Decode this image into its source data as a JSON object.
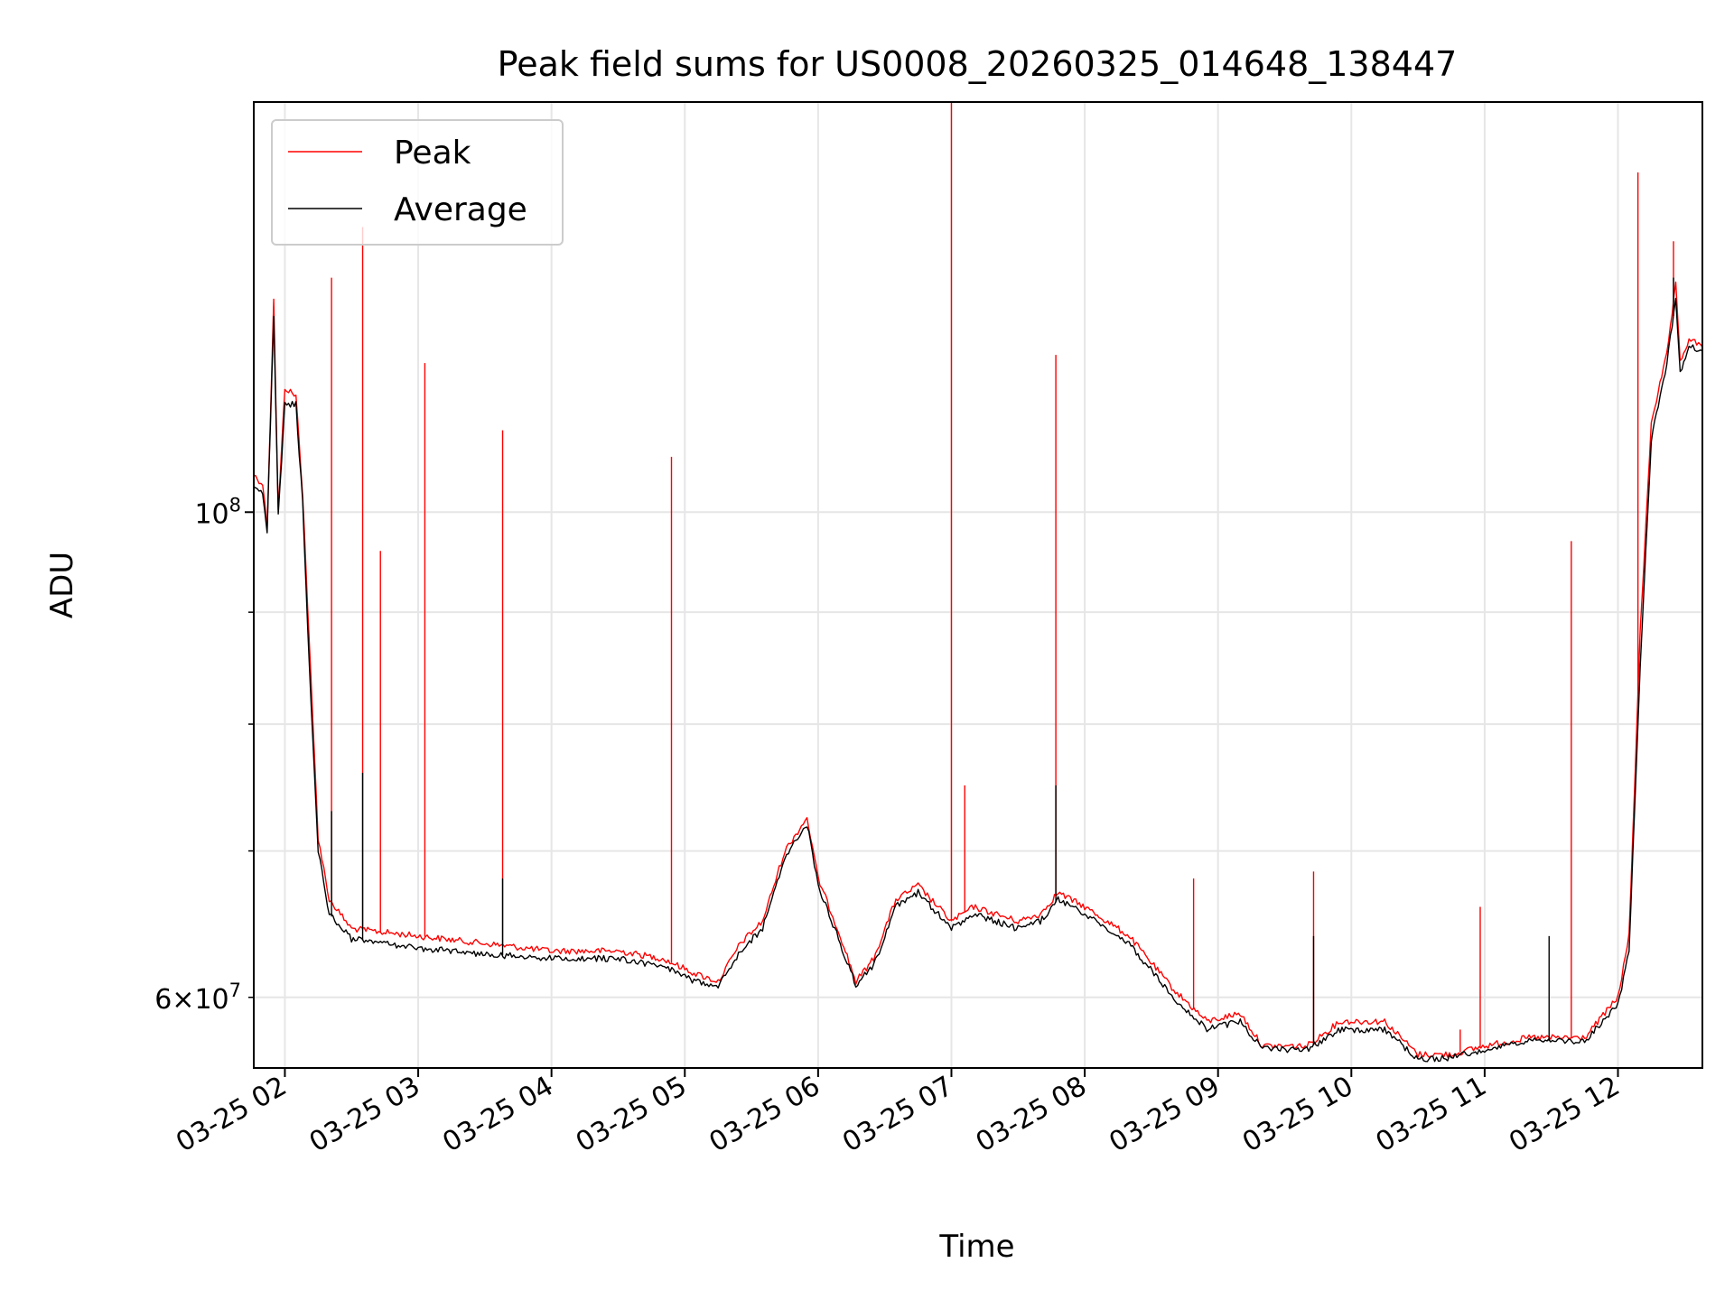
{
  "chart_data": {
    "type": "line",
    "title": "Peak field sums for US0008_20260325_014648_138447",
    "xlabel": "Time",
    "ylabel": "ADU",
    "yscale": "log",
    "xlim": [
      "2026-03-25T01:46",
      "2026-03-25T12:38"
    ],
    "ylim": [
      55700000,
      154000000
    ],
    "x_ticks": [
      "03-25 02",
      "03-25 03",
      "03-25 04",
      "03-25 05",
      "03-25 06",
      "03-25 07",
      "03-25 08",
      "03-25 09",
      "03-25 10",
      "03-25 11",
      "03-25 12"
    ],
    "y_major_ticks": [
      {
        "value": 100000000,
        "base": "10",
        "exp": "8"
      }
    ],
    "y_labeled_minor_ticks": [
      {
        "value": 60000000,
        "mantissa": "6",
        "base": "10",
        "exp": "7"
      }
    ],
    "y_minor_ticks": [
      70000000,
      80000000,
      90000000
    ],
    "grid": true,
    "legend_position": "upper-left",
    "series": [
      {
        "name": "Peak",
        "color": "#ff0000",
        "points": [
          [
            "2026-03-25T01:46",
            104000000
          ],
          [
            "2026-03-25T01:50",
            103000000
          ],
          [
            "2026-03-25T01:52",
            98500000
          ],
          [
            "2026-03-25T01:55",
            125000000
          ],
          [
            "2026-03-25T01:57",
            100000000
          ],
          [
            "2026-03-25T02:00",
            114000000
          ],
          [
            "2026-03-25T02:05",
            113000000
          ],
          [
            "2026-03-25T02:08",
            102000000
          ],
          [
            "2026-03-25T02:11",
            87000000
          ],
          [
            "2026-03-25T02:15",
            71000000
          ],
          [
            "2026-03-25T02:20",
            66500000
          ],
          [
            "2026-03-25T02:30",
            64500000
          ],
          [
            "2026-03-25T03:00",
            64000000
          ],
          [
            "2026-03-25T03:30",
            63500000
          ],
          [
            "2026-03-25T04:00",
            63000000
          ],
          [
            "2026-03-25T04:30",
            63000000
          ],
          [
            "2026-03-25T04:50",
            62500000
          ],
          [
            "2026-03-25T05:05",
            61500000
          ],
          [
            "2026-03-25T05:15",
            61000000
          ],
          [
            "2026-03-25T05:25",
            63500000
          ],
          [
            "2026-03-25T05:35",
            65000000
          ],
          [
            "2026-03-25T05:45",
            70000000
          ],
          [
            "2026-03-25T05:55",
            72500000
          ],
          [
            "2026-03-25T06:00",
            68000000
          ],
          [
            "2026-03-25T06:10",
            64000000
          ],
          [
            "2026-03-25T06:17",
            61000000
          ],
          [
            "2026-03-25T06:25",
            62500000
          ],
          [
            "2026-03-25T06:35",
            66500000
          ],
          [
            "2026-03-25T06:45",
            67500000
          ],
          [
            "2026-03-25T07:00",
            65000000
          ],
          [
            "2026-03-25T07:10",
            66000000
          ],
          [
            "2026-03-25T07:30",
            65000000
          ],
          [
            "2026-03-25T07:40",
            65500000
          ],
          [
            "2026-03-25T07:48",
            67000000
          ],
          [
            "2026-03-25T08:00",
            66000000
          ],
          [
            "2026-03-25T08:20",
            64000000
          ],
          [
            "2026-03-25T08:40",
            60500000
          ],
          [
            "2026-03-25T08:55",
            58500000
          ],
          [
            "2026-03-25T09:10",
            59000000
          ],
          [
            "2026-03-25T09:20",
            57000000
          ],
          [
            "2026-03-25T09:40",
            57000000
          ],
          [
            "2026-03-25T09:55",
            58500000
          ],
          [
            "2026-03-25T10:15",
            58500000
          ],
          [
            "2026-03-25T10:30",
            56500000
          ],
          [
            "2026-03-25T10:45",
            56500000
          ],
          [
            "2026-03-25T11:00",
            57000000
          ],
          [
            "2026-03-25T11:20",
            57500000
          ],
          [
            "2026-03-25T11:45",
            57500000
          ],
          [
            "2026-03-25T12:00",
            60000000
          ],
          [
            "2026-03-25T12:05",
            64000000
          ],
          [
            "2026-03-25T12:10",
            88000000
          ],
          [
            "2026-03-25T12:15",
            110000000
          ],
          [
            "2026-03-25T12:22",
            118000000
          ],
          [
            "2026-03-25T12:26",
            127000000
          ],
          [
            "2026-03-25T12:28",
            117000000
          ],
          [
            "2026-03-25T12:32",
            120000000
          ],
          [
            "2026-03-25T12:38",
            119000000
          ]
        ],
        "spikes": [
          [
            "2026-03-25T02:21",
            128000000
          ],
          [
            "2026-03-25T02:35",
            135000000
          ],
          [
            "2026-03-25T02:43",
            96000000
          ],
          [
            "2026-03-25T03:03",
            117000000
          ],
          [
            "2026-03-25T03:38",
            109000000
          ],
          [
            "2026-03-25T04:54",
            106000000
          ],
          [
            "2026-03-25T07:00",
            154000000
          ],
          [
            "2026-03-25T07:06",
            75000000
          ],
          [
            "2026-03-25T07:47",
            118000000
          ],
          [
            "2026-03-25T08:49",
            68000000
          ],
          [
            "2026-03-25T09:43",
            68500000
          ],
          [
            "2026-03-25T10:49",
            58000000
          ],
          [
            "2026-03-25T10:58",
            66000000
          ],
          [
            "2026-03-25T11:39",
            97000000
          ],
          [
            "2026-03-25T12:09",
            143000000
          ],
          [
            "2026-03-25T12:25",
            133000000
          ]
        ]
      },
      {
        "name": "Average",
        "color": "#000000",
        "points": [
          [
            "2026-03-25T01:46",
            103000000
          ],
          [
            "2026-03-25T01:50",
            102000000
          ],
          [
            "2026-03-25T01:52",
            98000000
          ],
          [
            "2026-03-25T01:55",
            123000000
          ],
          [
            "2026-03-25T01:57",
            99500000
          ],
          [
            "2026-03-25T02:00",
            112000000
          ],
          [
            "2026-03-25T02:05",
            112000000
          ],
          [
            "2026-03-25T02:08",
            101000000
          ],
          [
            "2026-03-25T02:11",
            85000000
          ],
          [
            "2026-03-25T02:15",
            70000000
          ],
          [
            "2026-03-25T02:20",
            65500000
          ],
          [
            "2026-03-25T02:30",
            63800000
          ],
          [
            "2026-03-25T03:00",
            63200000
          ],
          [
            "2026-03-25T03:30",
            62800000
          ],
          [
            "2026-03-25T04:00",
            62500000
          ],
          [
            "2026-03-25T04:30",
            62500000
          ],
          [
            "2026-03-25T04:50",
            62000000
          ],
          [
            "2026-03-25T05:05",
            61000000
          ],
          [
            "2026-03-25T05:15",
            60800000
          ],
          [
            "2026-03-25T05:25",
            63000000
          ],
          [
            "2026-03-25T05:35",
            64500000
          ],
          [
            "2026-03-25T05:45",
            69500000
          ],
          [
            "2026-03-25T05:55",
            72000000
          ],
          [
            "2026-03-25T06:00",
            67500000
          ],
          [
            "2026-03-25T06:10",
            63500000
          ],
          [
            "2026-03-25T06:17",
            60800000
          ],
          [
            "2026-03-25T06:25",
            62000000
          ],
          [
            "2026-03-25T06:35",
            66000000
          ],
          [
            "2026-03-25T06:45",
            67000000
          ],
          [
            "2026-03-25T07:00",
            64500000
          ],
          [
            "2026-03-25T07:10",
            65500000
          ],
          [
            "2026-03-25T07:30",
            64500000
          ],
          [
            "2026-03-25T07:40",
            65000000
          ],
          [
            "2026-03-25T07:48",
            66500000
          ],
          [
            "2026-03-25T08:00",
            65500000
          ],
          [
            "2026-03-25T08:20",
            63500000
          ],
          [
            "2026-03-25T08:40",
            60000000
          ],
          [
            "2026-03-25T08:55",
            58000000
          ],
          [
            "2026-03-25T09:10",
            58500000
          ],
          [
            "2026-03-25T09:20",
            56800000
          ],
          [
            "2026-03-25T09:40",
            56800000
          ],
          [
            "2026-03-25T09:55",
            58000000
          ],
          [
            "2026-03-25T10:15",
            58000000
          ],
          [
            "2026-03-25T10:30",
            56200000
          ],
          [
            "2026-03-25T10:45",
            56300000
          ],
          [
            "2026-03-25T11:00",
            56800000
          ],
          [
            "2026-03-25T11:20",
            57300000
          ],
          [
            "2026-03-25T11:45",
            57300000
          ],
          [
            "2026-03-25T12:00",
            59500000
          ],
          [
            "2026-03-25T12:05",
            63000000
          ],
          [
            "2026-03-25T12:10",
            85000000
          ],
          [
            "2026-03-25T12:15",
            108000000
          ],
          [
            "2026-03-25T12:22",
            117000000
          ],
          [
            "2026-03-25T12:26",
            125000000
          ],
          [
            "2026-03-25T12:28",
            116000000
          ],
          [
            "2026-03-25T12:32",
            119000000
          ],
          [
            "2026-03-25T12:38",
            118500000
          ]
        ],
        "spikes": [
          [
            "2026-03-25T02:21",
            73000000
          ],
          [
            "2026-03-25T02:35",
            76000000
          ],
          [
            "2026-03-25T03:38",
            68000000
          ],
          [
            "2026-03-25T07:47",
            75000000
          ],
          [
            "2026-03-25T09:43",
            64000000
          ],
          [
            "2026-03-25T11:29",
            64000000
          ],
          [
            "2026-03-25T12:25",
            128000000
          ]
        ]
      }
    ]
  }
}
